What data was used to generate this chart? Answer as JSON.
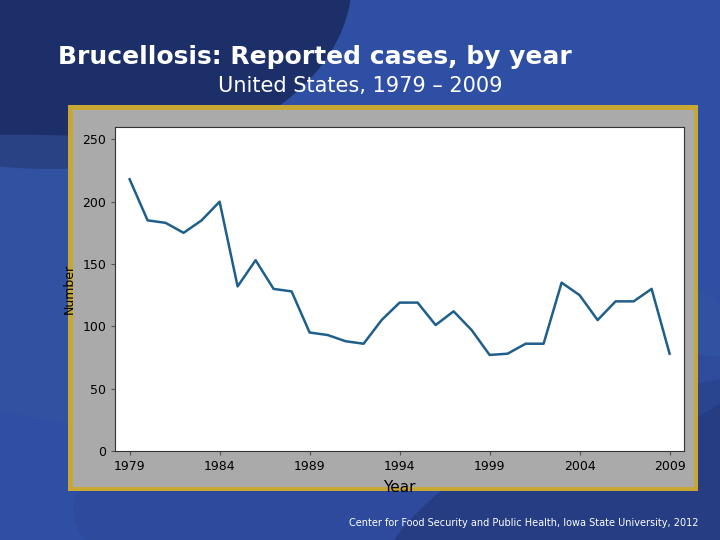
{
  "title_line1": "Brucellosis: Reported cases, by year",
  "title_line2": "United States, 1979 – 2009",
  "xlabel": "Year",
  "ylabel": "Number",
  "footnote": "Center for Food Security and Public Health, Iowa State University, 2012",
  "years": [
    1979,
    1980,
    1981,
    1982,
    1983,
    1984,
    1985,
    1986,
    1987,
    1988,
    1989,
    1990,
    1991,
    1992,
    1993,
    1994,
    1995,
    1996,
    1997,
    1998,
    1999,
    2000,
    2001,
    2002,
    2003,
    2004,
    2005,
    2006,
    2007,
    2008,
    2009
  ],
  "cases": [
    218,
    185,
    183,
    175,
    185,
    200,
    132,
    153,
    130,
    128,
    95,
    93,
    88,
    86,
    105,
    119,
    119,
    101,
    112,
    97,
    77,
    78,
    86,
    86,
    135,
    125,
    105,
    120,
    120,
    130,
    78
  ],
  "line_color": "#1f5f8b",
  "bg_color": "#ffffff",
  "slide_bg_dark": "#1a2f6b",
  "slide_bg_mid": "#2e4fa3",
  "slide_bg_light": "#4a6bbf",
  "border_color_gold": "#c8a832",
  "border_color_inner": "#555555",
  "yticks": [
    0,
    50,
    100,
    150,
    200,
    250
  ],
  "xticks": [
    1979,
    1984,
    1989,
    1994,
    1999,
    2004,
    2009
  ],
  "ylim": [
    0,
    260
  ],
  "xlim": [
    1978.2,
    2009.8
  ],
  "title1_fontsize": 18,
  "title2_fontsize": 15,
  "footnote_fontsize": 7
}
